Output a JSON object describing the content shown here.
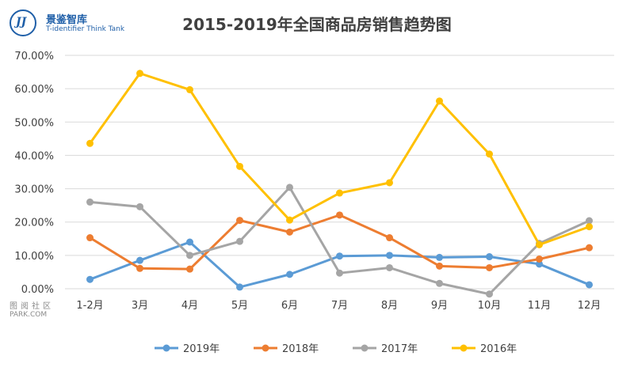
{
  "logo": {
    "mark": "JJ",
    "name": "景鉴智库",
    "subtitle": "T-identifier Think Tank"
  },
  "watermark": {
    "line1": "图阅社区",
    "line2": "PARK.COM"
  },
  "chart_data": {
    "type": "line",
    "title": "2015-2019年全国商品房销售趋势图",
    "categories": [
      "1-2月",
      "3月",
      "4月",
      "5月",
      "6月",
      "7月",
      "8月",
      "9月",
      "10月",
      "11月",
      "12月"
    ],
    "ylim": [
      0,
      0.7
    ],
    "yticks": [
      "0.00%",
      "10.00%",
      "20.00%",
      "30.00%",
      "40.00%",
      "50.00%",
      "60.00%",
      "70.00%"
    ],
    "grid": true,
    "legend_position": "bottom",
    "series": [
      {
        "name": "2019年",
        "color": "#5b9bd5",
        "values": [
          0.028,
          0.085,
          0.14,
          0.005,
          0.043,
          0.098,
          0.1,
          0.094,
          0.096,
          0.074,
          0.012
        ]
      },
      {
        "name": "2018年",
        "color": "#ed7d31",
        "values": [
          0.153,
          0.061,
          0.059,
          0.205,
          0.17,
          0.221,
          0.153,
          0.068,
          0.063,
          0.089,
          0.123
        ]
      },
      {
        "name": "2017年",
        "color": "#a5a5a5",
        "values": [
          0.26,
          0.246,
          0.1,
          0.142,
          0.304,
          0.047,
          0.063,
          0.016,
          -0.016,
          0.136,
          0.204
        ]
      },
      {
        "name": "2016年",
        "color": "#ffc000",
        "values": [
          0.436,
          0.646,
          0.597,
          0.367,
          0.206,
          0.287,
          0.318,
          0.563,
          0.404,
          0.132,
          0.186
        ]
      }
    ]
  }
}
